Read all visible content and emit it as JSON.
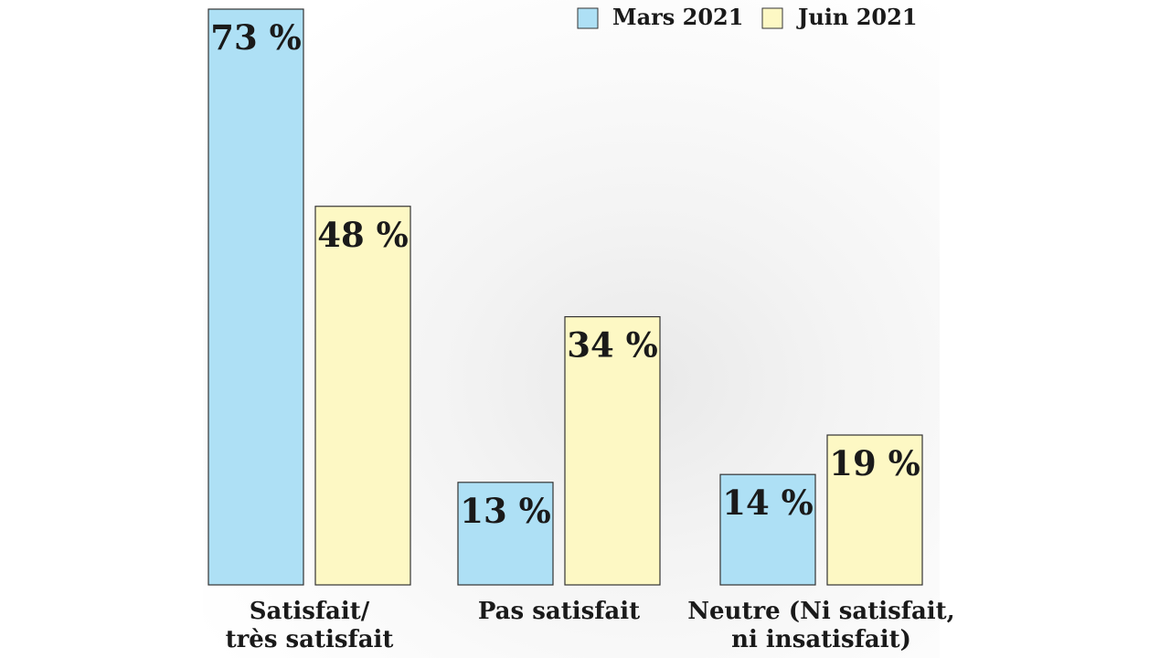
{
  "chart_data": {
    "type": "bar",
    "title": "",
    "xlabel": "",
    "ylabel": "",
    "ylim": [
      0,
      73
    ],
    "grid": false,
    "legend_position": "top-right",
    "value_suffix": " %",
    "categories": [
      [
        "Satisfait/",
        "très satisfait"
      ],
      [
        "Pas satisfait"
      ],
      [
        "Neutre (Ni satisfait,",
        "ni insatisfait)"
      ]
    ],
    "series": [
      {
        "name": "Mars 2021",
        "color": "#aee0f5",
        "values": [
          73,
          13,
          14
        ]
      },
      {
        "name": "Juin 2021",
        "color": "#fdf8c4",
        "values": [
          48,
          34,
          19
        ]
      }
    ]
  }
}
